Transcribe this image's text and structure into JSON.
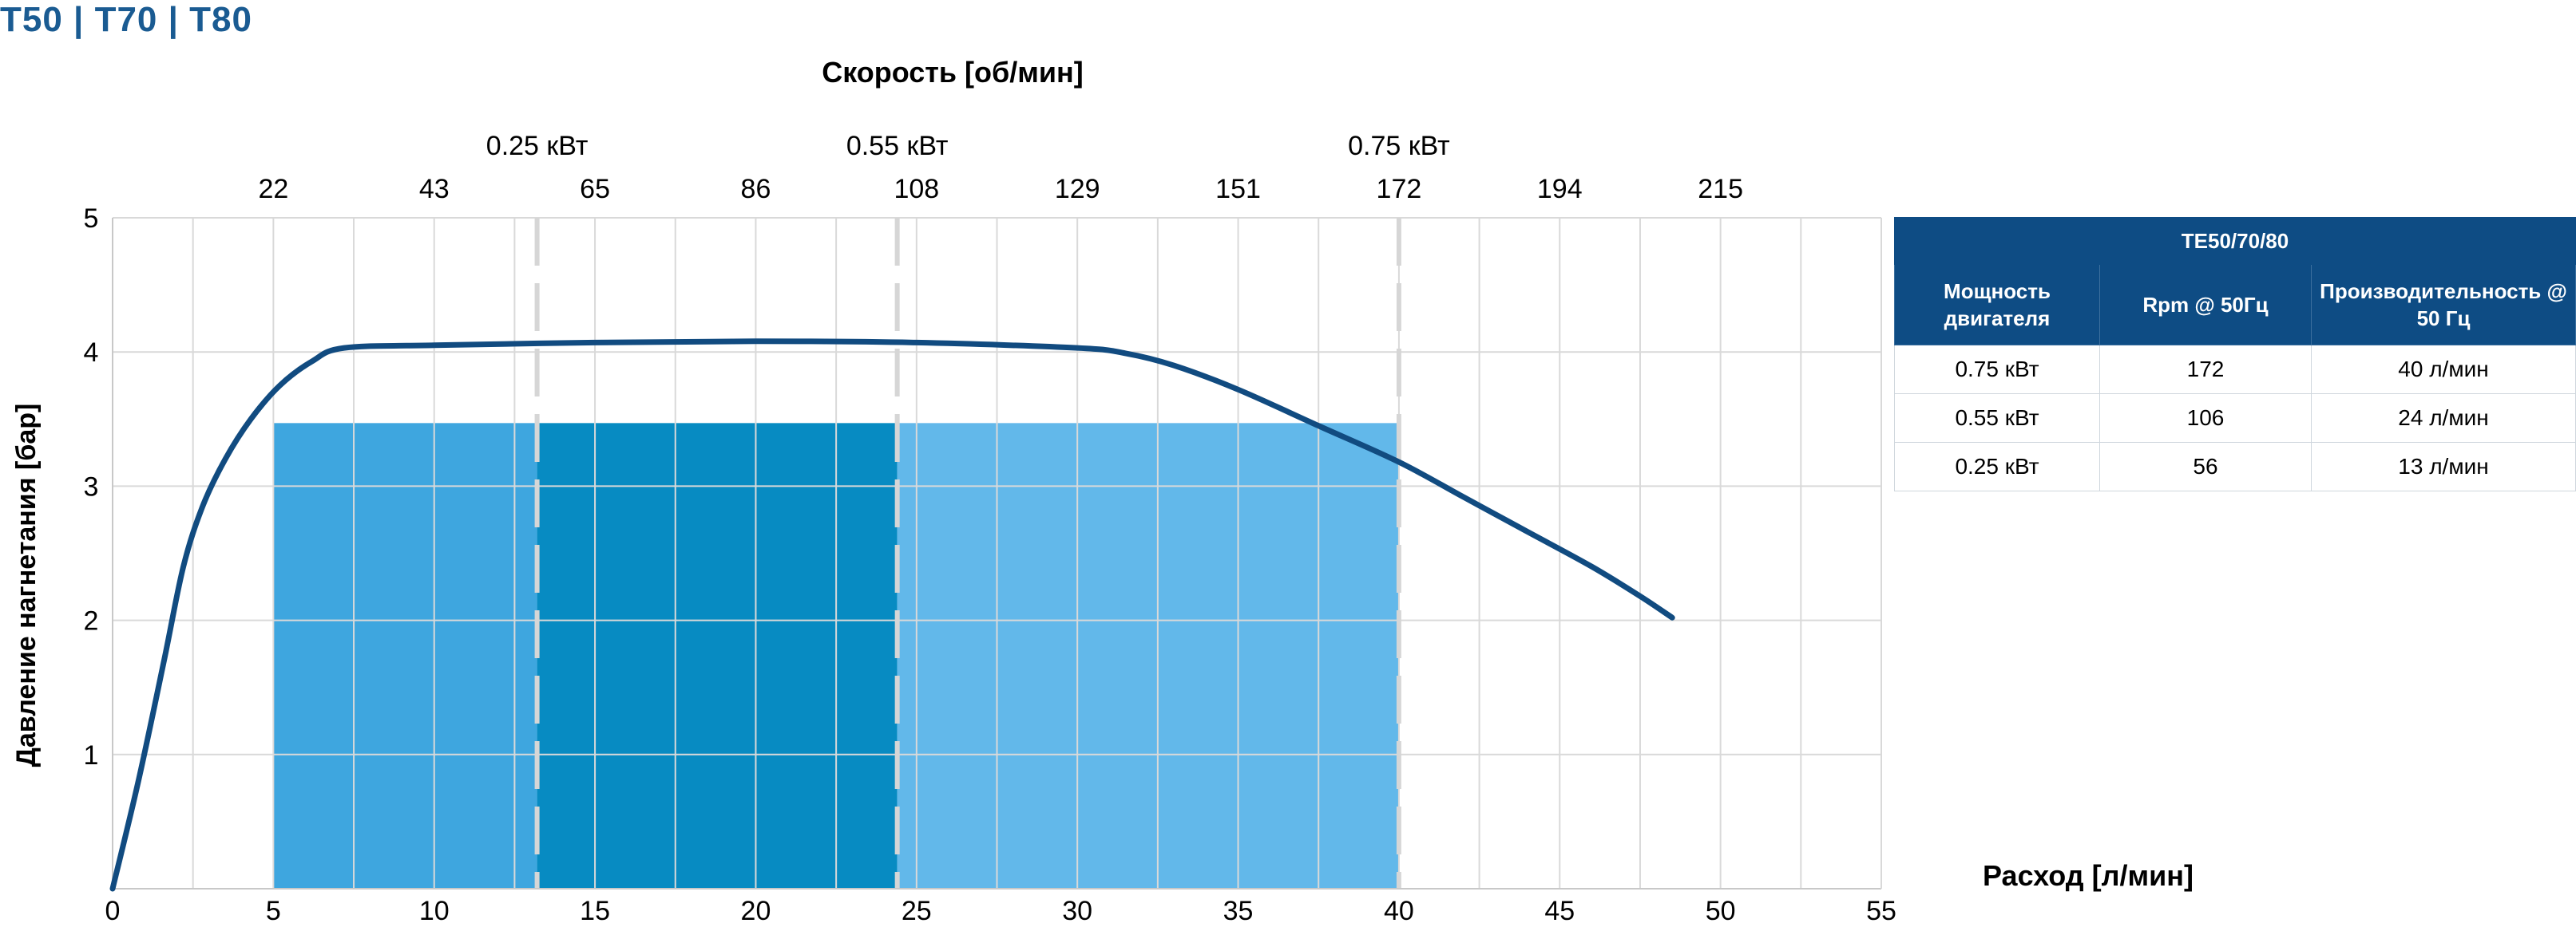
{
  "page_title": "T50 | T70 | T80",
  "table": {
    "title": "TE50/70/80",
    "headers": [
      "Мощность двигателя",
      "Rpm @ 50Гц",
      "Производительность @ 50 Гц"
    ],
    "rows": [
      [
        "0.75 кВт",
        "172",
        "40 л/мин"
      ],
      [
        "0.55 кВт",
        "106",
        "24 л/мин"
      ],
      [
        "0.25 кВт",
        "56",
        "13 л/мин"
      ]
    ]
  },
  "chart_data": {
    "type": "line",
    "title": "",
    "xlabel": "Расход [л/мин]",
    "ylabel": "Давление нагнетания [бар]",
    "x2label": "Скорость [об/мин]",
    "xlim": [
      0,
      55
    ],
    "ylim": [
      0,
      5
    ],
    "grid": true,
    "x_ticks": [
      {
        "value": 0,
        "label": "0"
      },
      {
        "value": 5,
        "label": "5"
      },
      {
        "value": 10,
        "label": "10"
      },
      {
        "value": 15,
        "label": "15"
      },
      {
        "value": 20,
        "label": "20"
      },
      {
        "value": 25,
        "label": "25"
      },
      {
        "value": 30,
        "label": "30"
      },
      {
        "value": 35,
        "label": "35"
      },
      {
        "value": 40,
        "label": "40"
      },
      {
        "value": 45,
        "label": "45"
      },
      {
        "value": 50,
        "label": "50"
      },
      {
        "value": 55,
        "label": "55"
      }
    ],
    "y_ticks": [
      {
        "value": 1,
        "label": "1"
      },
      {
        "value": 2,
        "label": "2"
      },
      {
        "value": 3,
        "label": "3"
      },
      {
        "value": 4,
        "label": "4"
      },
      {
        "value": 5,
        "label": "5"
      }
    ],
    "speed_ticks": [
      {
        "flow": 5,
        "label": "22"
      },
      {
        "flow": 10,
        "label": "43"
      },
      {
        "flow": 15,
        "label": "65"
      },
      {
        "flow": 20,
        "label": "86"
      },
      {
        "flow": 25,
        "label": "108"
      },
      {
        "flow": 30,
        "label": "129"
      },
      {
        "flow": 35,
        "label": "151"
      },
      {
        "flow": 40,
        "label": "172"
      },
      {
        "flow": 45,
        "label": "194"
      },
      {
        "flow": 50,
        "label": "215"
      }
    ],
    "power_markers": [
      {
        "flow": 13.2,
        "label": "0.25 кВт"
      },
      {
        "flow": 24.4,
        "label": "0.55 кВт"
      },
      {
        "flow": 40,
        "label": "0.75 кВт"
      }
    ],
    "operating_regions": [
      {
        "x_start": 5,
        "x_end": 13.2,
        "y_top": 3.47,
        "color": "#3ea6df"
      },
      {
        "x_start": 13.2,
        "x_end": 24.4,
        "y_top": 3.47,
        "color": "#078bc2"
      },
      {
        "x_start": 24.4,
        "x_end": 40,
        "y_top": 3.47,
        "color": "#62b8ea"
      }
    ],
    "series": [
      {
        "color": "#114b80",
        "x": [
          0,
          0.8,
          1.6,
          2.2,
          2.8,
          3.5,
          4.3,
          5.2,
          6.2,
          7.2,
          10,
          15,
          20,
          25,
          30,
          31.5,
          33,
          35,
          37.5,
          40,
          42,
          44,
          46,
          47.5,
          48.5
        ],
        "y": [
          0,
          0.8,
          1.7,
          2.4,
          2.85,
          3.2,
          3.5,
          3.75,
          3.93,
          4.03,
          4.05,
          4.07,
          4.08,
          4.07,
          4.03,
          3.99,
          3.9,
          3.72,
          3.45,
          3.18,
          2.92,
          2.66,
          2.4,
          2.18,
          2.02
        ]
      }
    ]
  }
}
